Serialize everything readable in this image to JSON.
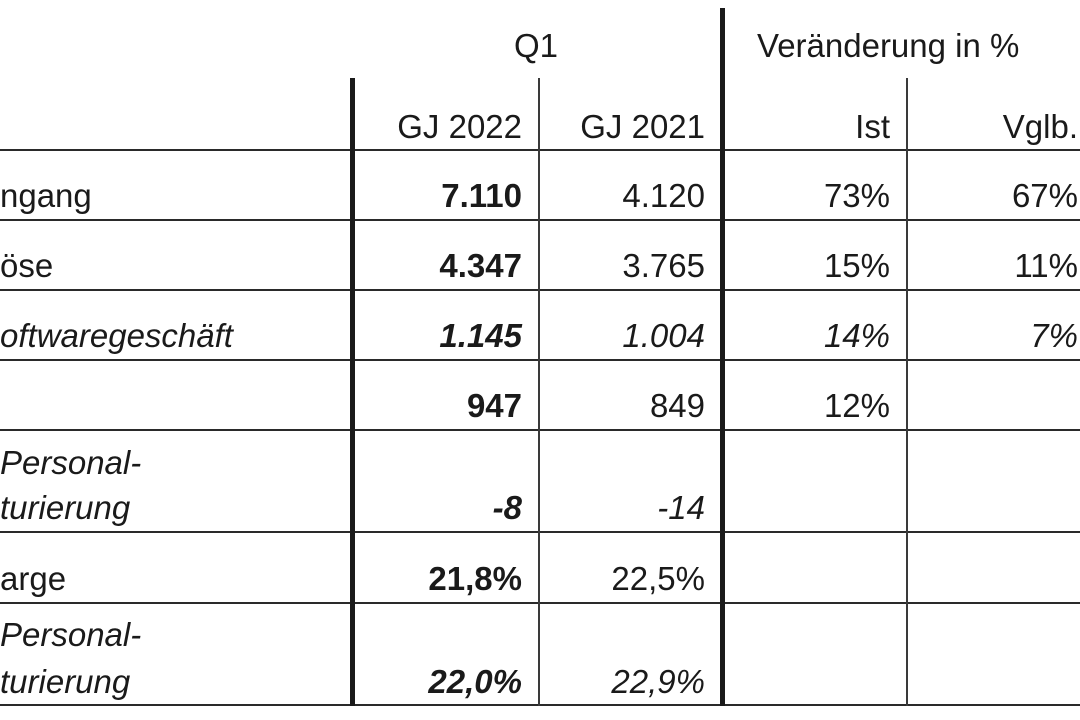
{
  "header": {
    "period": "Q1",
    "change": "Veränderung in %",
    "col_fy2022": "GJ 2022",
    "col_fy2021": "GJ 2021",
    "col_actual": "Ist",
    "col_comparable": "Vglb."
  },
  "rows": [
    {
      "label": "ngang",
      "label2": "",
      "fy2022": "7.110",
      "fy2021": "4.120",
      "actual": "73%",
      "comparable": "67%",
      "italic": false
    },
    {
      "label": "öse",
      "label2": "",
      "fy2022": "4.347",
      "fy2021": "3.765",
      "actual": "15%",
      "comparable": "11%",
      "italic": false
    },
    {
      "label": "oftwaregeschäft",
      "label2": "",
      "fy2022": "1.145",
      "fy2021": "1.004",
      "actual": "14%",
      "comparable": "7%",
      "italic": true
    },
    {
      "label": "",
      "label2": "",
      "fy2022": "947",
      "fy2021": "849",
      "actual": "12%",
      "comparable": "",
      "italic": false
    },
    {
      "label": "Personal-",
      "label2": "turierung",
      "fy2022": "-8",
      "fy2021": "-14",
      "actual": "",
      "comparable": "",
      "italic": true
    },
    {
      "label": "arge",
      "label2": "",
      "fy2022": "21,8%",
      "fy2021": "22,5%",
      "actual": "",
      "comparable": "",
      "italic": false
    },
    {
      "label": "Personal-",
      "label2": "turierung",
      "fy2022": "22,0%",
      "fy2021": "22,9%",
      "actual": "",
      "comparable": "",
      "italic": true
    }
  ]
}
